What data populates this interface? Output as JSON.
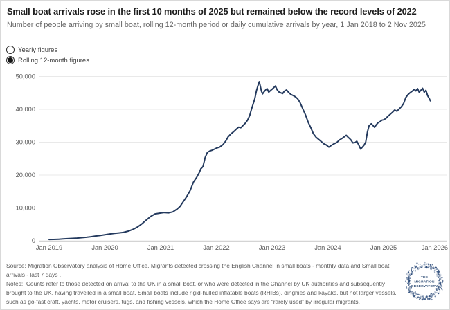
{
  "chart_data": {
    "type": "line",
    "title": "Small boat arrivals rose in the first 10 months of 2025 but remained below the record levels of 2022",
    "subtitle": "Number of people arriving by small boat, rolling 12-month period or daily cumulative arrivals by year, 1 Jan 2018 to 2 Nov 2025",
    "xlabel": "",
    "ylabel": "Number of people",
    "ylim": [
      0,
      50000
    ],
    "grid": true,
    "legend": "none",
    "line_color": "#243a5e",
    "grid_color": "#e9e9e9",
    "axis_color": "#d4d4d4",
    "x_ticks": [
      "Jan 2019",
      "Jan 2020",
      "Jan 2021",
      "Jan 2022",
      "Jan 2023",
      "Jan 2024",
      "Jan 2025",
      "Jan 2026"
    ],
    "y_ticks": [
      "0",
      "10,000",
      "20,000",
      "30,000",
      "40,000",
      "50,000"
    ],
    "y_tick_values": [
      0,
      10000,
      20000,
      30000,
      40000,
      50000
    ],
    "series": [
      {
        "name": "Rolling 12-month figures",
        "points": [
          [
            2019.0,
            400
          ],
          [
            2019.08,
            430
          ],
          [
            2019.17,
            480
          ],
          [
            2019.25,
            560
          ],
          [
            2019.33,
            650
          ],
          [
            2019.42,
            740
          ],
          [
            2019.5,
            830
          ],
          [
            2019.58,
            950
          ],
          [
            2019.67,
            1080
          ],
          [
            2019.75,
            1250
          ],
          [
            2019.83,
            1450
          ],
          [
            2019.92,
            1650
          ],
          [
            2020.0,
            1850
          ],
          [
            2020.08,
            2050
          ],
          [
            2020.17,
            2250
          ],
          [
            2020.25,
            2400
          ],
          [
            2020.33,
            2550
          ],
          [
            2020.42,
            2950
          ],
          [
            2020.5,
            3450
          ],
          [
            2020.58,
            4150
          ],
          [
            2020.66,
            5100
          ],
          [
            2020.74,
            6300
          ],
          [
            2020.82,
            7400
          ],
          [
            2020.9,
            8200
          ],
          [
            2020.98,
            8400
          ],
          [
            2021.06,
            8600
          ],
          [
            2021.14,
            8500
          ],
          [
            2021.22,
            8800
          ],
          [
            2021.3,
            9700
          ],
          [
            2021.35,
            10500
          ],
          [
            2021.41,
            12000
          ],
          [
            2021.47,
            13500
          ],
          [
            2021.53,
            15300
          ],
          [
            2021.59,
            17900
          ],
          [
            2021.65,
            19400
          ],
          [
            2021.7,
            21000
          ],
          [
            2021.72,
            21900
          ],
          [
            2021.76,
            22600
          ],
          [
            2021.8,
            25400
          ],
          [
            2021.84,
            26900
          ],
          [
            2021.88,
            27300
          ],
          [
            2021.93,
            27600
          ],
          [
            2022.0,
            28200
          ],
          [
            2022.06,
            28500
          ],
          [
            2022.12,
            29300
          ],
          [
            2022.17,
            30400
          ],
          [
            2022.21,
            31600
          ],
          [
            2022.26,
            32500
          ],
          [
            2022.31,
            33200
          ],
          [
            2022.36,
            34000
          ],
          [
            2022.4,
            34600
          ],
          [
            2022.44,
            34400
          ],
          [
            2022.48,
            35100
          ],
          [
            2022.52,
            35800
          ],
          [
            2022.56,
            36700
          ],
          [
            2022.6,
            38200
          ],
          [
            2022.63,
            40000
          ],
          [
            2022.66,
            41600
          ],
          [
            2022.69,
            43200
          ],
          [
            2022.72,
            45700
          ],
          [
            2022.75,
            47400
          ],
          [
            2022.77,
            48400
          ],
          [
            2022.79,
            47000
          ],
          [
            2022.81,
            45500
          ],
          [
            2022.83,
            44700
          ],
          [
            2022.86,
            45400
          ],
          [
            2022.89,
            46000
          ],
          [
            2022.91,
            46300
          ],
          [
            2022.94,
            45200
          ],
          [
            2022.97,
            45700
          ],
          [
            2023.0,
            46100
          ],
          [
            2023.03,
            46600
          ],
          [
            2023.06,
            47100
          ],
          [
            2023.09,
            46000
          ],
          [
            2023.12,
            45300
          ],
          [
            2023.16,
            45000
          ],
          [
            2023.19,
            44800
          ],
          [
            2023.22,
            45500
          ],
          [
            2023.26,
            45900
          ],
          [
            2023.3,
            45100
          ],
          [
            2023.34,
            44500
          ],
          [
            2023.38,
            44200
          ],
          [
            2023.42,
            43800
          ],
          [
            2023.46,
            43200
          ],
          [
            2023.5,
            42100
          ],
          [
            2023.55,
            40200
          ],
          [
            2023.6,
            38300
          ],
          [
            2023.65,
            36000
          ],
          [
            2023.7,
            34200
          ],
          [
            2023.74,
            32600
          ],
          [
            2023.79,
            31500
          ],
          [
            2023.84,
            30800
          ],
          [
            2023.89,
            30100
          ],
          [
            2023.93,
            29500
          ],
          [
            2023.97,
            29200
          ],
          [
            2024.02,
            28500
          ],
          [
            2024.06,
            29000
          ],
          [
            2024.1,
            29400
          ],
          [
            2024.16,
            29900
          ],
          [
            2024.21,
            30700
          ],
          [
            2024.26,
            31200
          ],
          [
            2024.3,
            31700
          ],
          [
            2024.33,
            32100
          ],
          [
            2024.37,
            31400
          ],
          [
            2024.41,
            30800
          ],
          [
            2024.45,
            29800
          ],
          [
            2024.49,
            29900
          ],
          [
            2024.52,
            30300
          ],
          [
            2024.56,
            29000
          ],
          [
            2024.59,
            27900
          ],
          [
            2024.62,
            28500
          ],
          [
            2024.65,
            29100
          ],
          [
            2024.68,
            30000
          ],
          [
            2024.71,
            33100
          ],
          [
            2024.74,
            35000
          ],
          [
            2024.78,
            35600
          ],
          [
            2024.81,
            35100
          ],
          [
            2024.84,
            34500
          ],
          [
            2024.87,
            35300
          ],
          [
            2024.9,
            35900
          ],
          [
            2024.94,
            36300
          ],
          [
            2024.97,
            36700
          ],
          [
            2025.0,
            36800
          ],
          [
            2025.04,
            37200
          ],
          [
            2025.08,
            37900
          ],
          [
            2025.12,
            38500
          ],
          [
            2025.16,
            39100
          ],
          [
            2025.2,
            39800
          ],
          [
            2025.24,
            39400
          ],
          [
            2025.28,
            40100
          ],
          [
            2025.32,
            40800
          ],
          [
            2025.36,
            41800
          ],
          [
            2025.4,
            43600
          ],
          [
            2025.44,
            44500
          ],
          [
            2025.48,
            45100
          ],
          [
            2025.52,
            45600
          ],
          [
            2025.55,
            46100
          ],
          [
            2025.58,
            45600
          ],
          [
            2025.61,
            46300
          ],
          [
            2025.64,
            45200
          ],
          [
            2025.67,
            45800
          ],
          [
            2025.7,
            46400
          ],
          [
            2025.73,
            45200
          ],
          [
            2025.76,
            45800
          ],
          [
            2025.79,
            44200
          ],
          [
            2025.82,
            43300
          ],
          [
            2025.84,
            42600
          ]
        ]
      }
    ]
  },
  "controls": {
    "options": [
      {
        "label": "Yearly figures",
        "selected": false
      },
      {
        "label": "Rolling 12-month figures",
        "selected": true
      }
    ]
  },
  "footer": {
    "source": "Source: Migration Observatory analysis of Home Office, Migrants detected crossing the English Channel in small boats - monthly data and Small boat arrivals - last 7 days .",
    "notes": "Notes:  Counts refer to those detected on arrival to the UK in a small boat, or who were detected in the Channel by UK authorities and subsequently brought to the UK, having travelled in a small boat. Small boats include rigid-hulled inflatable boats (RHIBs), dinghies and kayaks, but not larger vessels, such as go-fast craft, yachts, motor cruisers, tugs, and fishing vessels, which the Home Office says are “rarely used” by irregular migrants."
  },
  "logo": {
    "line1": "THE",
    "line2": "MIGRATION",
    "line3": "OBSERVATORY",
    "color": "#2e4d7b"
  }
}
